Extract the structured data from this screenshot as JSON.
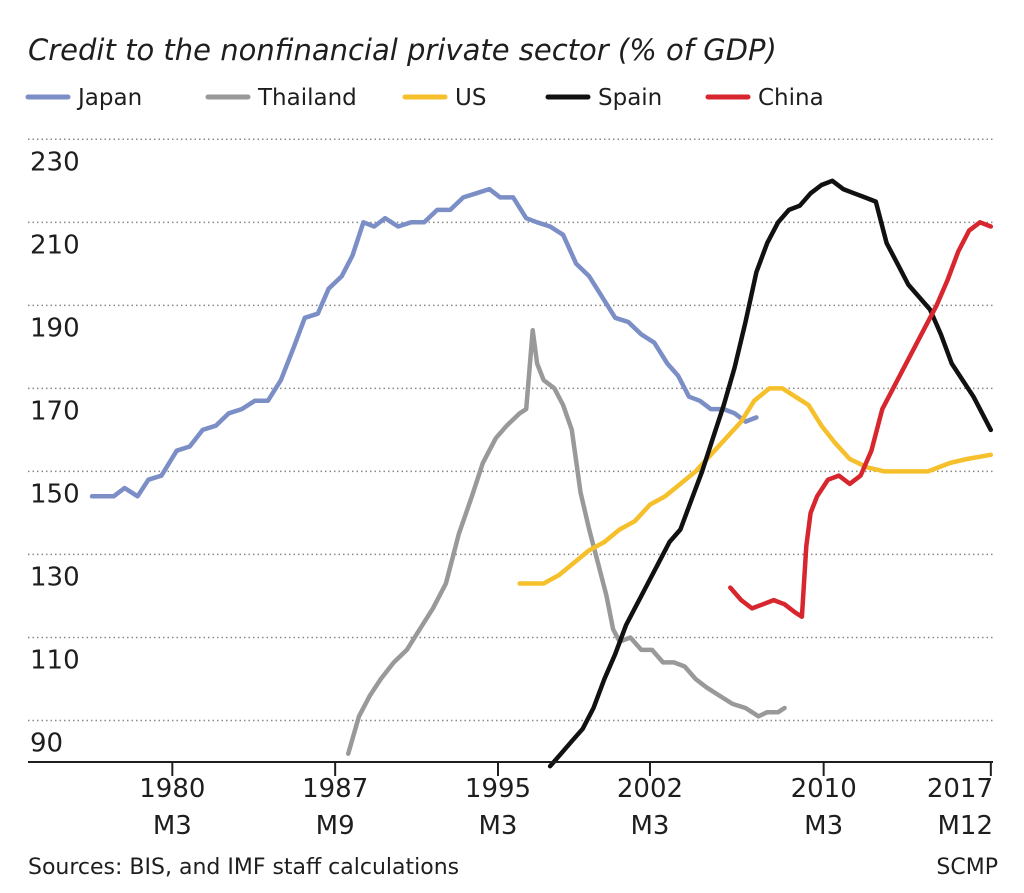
{
  "chart_data": {
    "type": "line",
    "title": "Credit to the nonfinancial private sector (%  of GDP)",
    "xlabel": "",
    "ylabel": "",
    "ylim": [
      80,
      232
    ],
    "xlim": [
      1976.5,
      2018
    ],
    "grid": "horizontal dotted",
    "legend_position": "top",
    "y_ticks": [
      230,
      210,
      190,
      170,
      150,
      130,
      110,
      90
    ],
    "x_ticks": [
      {
        "line1": "1980",
        "line2": "M3",
        "x": 1980.2
      },
      {
        "line1": "1987",
        "line2": "M9",
        "x": 1987.7
      },
      {
        "line1": "1995",
        "line2": "M3",
        "x": 1995.2
      },
      {
        "line1": "2002",
        "line2": "M3",
        "x": 2002.2
      },
      {
        "line1": "2010",
        "line2": "M3",
        "x": 2010.2
      },
      {
        "line1": "2017",
        "line2": "M12",
        "x": 2017.9
      }
    ],
    "series": [
      {
        "name": "Japan",
        "color": "#7b8fc6",
        "points": [
          [
            1976.5,
            144
          ],
          [
            1977.5,
            144
          ],
          [
            1978,
            146
          ],
          [
            1978.6,
            144
          ],
          [
            1979.1,
            148
          ],
          [
            1979.7,
            149
          ],
          [
            1980.4,
            155
          ],
          [
            1981,
            156
          ],
          [
            1981.6,
            160
          ],
          [
            1982.2,
            161
          ],
          [
            1982.8,
            164
          ],
          [
            1983.4,
            165
          ],
          [
            1984,
            167
          ],
          [
            1984.6,
            167
          ],
          [
            1985.2,
            172
          ],
          [
            1985.8,
            180
          ],
          [
            1986.3,
            187
          ],
          [
            1986.9,
            188
          ],
          [
            1987.4,
            194
          ],
          [
            1988,
            197
          ],
          [
            1988.5,
            202
          ],
          [
            1989,
            210
          ],
          [
            1989.5,
            209
          ],
          [
            1990,
            211
          ],
          [
            1990.6,
            209
          ],
          [
            1991.2,
            210
          ],
          [
            1991.8,
            210
          ],
          [
            1992.4,
            213
          ],
          [
            1993,
            213
          ],
          [
            1993.6,
            216
          ],
          [
            1994.2,
            217
          ],
          [
            1994.8,
            218
          ],
          [
            1995.3,
            216
          ],
          [
            1995.9,
            216
          ],
          [
            1996.5,
            211
          ],
          [
            1997,
            210
          ],
          [
            1997.6,
            209
          ],
          [
            1998.2,
            207
          ],
          [
            1998.8,
            200
          ],
          [
            1999.4,
            197
          ],
          [
            2000,
            192
          ],
          [
            2000.6,
            187
          ],
          [
            2001.2,
            186
          ],
          [
            2001.8,
            183
          ],
          [
            2002.4,
            181
          ],
          [
            2003,
            176
          ],
          [
            2003.5,
            173
          ],
          [
            2004,
            168
          ],
          [
            2004.5,
            167
          ],
          [
            2005,
            165
          ],
          [
            2005.6,
            165
          ],
          [
            2006.1,
            164
          ],
          [
            2006.6,
            162
          ],
          [
            2007.1,
            163
          ]
        ]
      },
      {
        "name": "Thailand",
        "color": "#999999",
        "points": [
          [
            1988.3,
            82
          ],
          [
            1988.8,
            91
          ],
          [
            1989.3,
            96
          ],
          [
            1989.8,
            100
          ],
          [
            1990.4,
            104
          ],
          [
            1991,
            107
          ],
          [
            1991.6,
            112
          ],
          [
            1992.2,
            117
          ],
          [
            1992.8,
            123
          ],
          [
            1993.4,
            135
          ],
          [
            1994,
            144
          ],
          [
            1994.5,
            152
          ],
          [
            1995.1,
            158
          ],
          [
            1995.6,
            161
          ],
          [
            1996.2,
            164
          ],
          [
            1996.5,
            165
          ],
          [
            1996.8,
            184
          ],
          [
            1997,
            176
          ],
          [
            1997.3,
            172
          ],
          [
            1997.8,
            170
          ],
          [
            1998.2,
            166
          ],
          [
            1998.6,
            160
          ],
          [
            1999,
            145
          ],
          [
            1999.4,
            136
          ],
          [
            1999.8,
            128
          ],
          [
            2000.2,
            120
          ],
          [
            2000.5,
            112
          ],
          [
            2000.8,
            109
          ],
          [
            2001.3,
            110
          ],
          [
            2001.8,
            107
          ],
          [
            2002.3,
            107
          ],
          [
            2002.8,
            104
          ],
          [
            2003.3,
            104
          ],
          [
            2003.8,
            103
          ],
          [
            2004.3,
            100
          ],
          [
            2004.8,
            98
          ],
          [
            2005.4,
            96
          ],
          [
            2006,
            94
          ],
          [
            2006.6,
            93
          ],
          [
            2007.2,
            91
          ],
          [
            2007.6,
            92
          ],
          [
            2008.1,
            92
          ],
          [
            2008.4,
            93
          ]
        ]
      },
      {
        "name": "US",
        "color": "#f5c02b",
        "points": [
          [
            1996.2,
            123
          ],
          [
            1997.3,
            123
          ],
          [
            1998,
            125
          ],
          [
            1998.7,
            128
          ],
          [
            1999.4,
            131
          ],
          [
            2000.1,
            133
          ],
          [
            2000.8,
            136
          ],
          [
            2001.5,
            138
          ],
          [
            2002.2,
            142
          ],
          [
            2002.9,
            144
          ],
          [
            2003.6,
            147
          ],
          [
            2004.3,
            150
          ],
          [
            2005,
            154
          ],
          [
            2005.7,
            158
          ],
          [
            2006.4,
            162
          ],
          [
            2007,
            167
          ],
          [
            2007.7,
            170
          ],
          [
            2008.3,
            170
          ],
          [
            2008.9,
            168
          ],
          [
            2009.5,
            166
          ],
          [
            2010.1,
            161
          ],
          [
            2010.7,
            157
          ],
          [
            2011.4,
            153
          ],
          [
            2012.2,
            151
          ],
          [
            2013,
            150
          ],
          [
            2014,
            150
          ],
          [
            2015,
            150
          ],
          [
            2016,
            152
          ],
          [
            2016.8,
            153
          ],
          [
            2017.9,
            154
          ]
        ]
      },
      {
        "name": "Spain",
        "color": "#111111",
        "points": [
          [
            1997.6,
            79
          ],
          [
            1998.1,
            82
          ],
          [
            1998.6,
            85
          ],
          [
            1999.1,
            88
          ],
          [
            1999.6,
            93
          ],
          [
            2000.1,
            100
          ],
          [
            2000.6,
            106
          ],
          [
            2001.1,
            113
          ],
          [
            2001.6,
            118
          ],
          [
            2002.1,
            123
          ],
          [
            2002.6,
            128
          ],
          [
            2003.1,
            133
          ],
          [
            2003.6,
            136
          ],
          [
            2004.1,
            143
          ],
          [
            2004.6,
            150
          ],
          [
            2005.1,
            158
          ],
          [
            2005.6,
            166
          ],
          [
            2006.1,
            175
          ],
          [
            2006.6,
            186
          ],
          [
            2007.1,
            198
          ],
          [
            2007.6,
            205
          ],
          [
            2008.1,
            210
          ],
          [
            2008.6,
            213
          ],
          [
            2009.1,
            214
          ],
          [
            2009.6,
            217
          ],
          [
            2010.1,
            219
          ],
          [
            2010.6,
            220
          ],
          [
            2011.1,
            218
          ],
          [
            2011.6,
            217
          ],
          [
            2012.1,
            216
          ],
          [
            2012.6,
            215
          ],
          [
            2013.1,
            205
          ],
          [
            2013.6,
            200
          ],
          [
            2014.1,
            195
          ],
          [
            2014.6,
            192
          ],
          [
            2015.1,
            189
          ],
          [
            2015.6,
            183
          ],
          [
            2016.1,
            176
          ],
          [
            2016.6,
            172
          ],
          [
            2017.1,
            168
          ],
          [
            2017.6,
            163
          ],
          [
            2017.9,
            160
          ]
        ]
      },
      {
        "name": "China",
        "color": "#d7262d",
        "points": [
          [
            2005.9,
            122
          ],
          [
            2006.4,
            119
          ],
          [
            2006.9,
            117
          ],
          [
            2007.4,
            118
          ],
          [
            2007.9,
            119
          ],
          [
            2008.4,
            118
          ],
          [
            2008.9,
            116
          ],
          [
            2009.2,
            115
          ],
          [
            2009.4,
            132
          ],
          [
            2009.6,
            140
          ],
          [
            2009.9,
            144
          ],
          [
            2010.4,
            148
          ],
          [
            2010.9,
            149
          ],
          [
            2011.4,
            147
          ],
          [
            2011.9,
            149
          ],
          [
            2012.4,
            155
          ],
          [
            2012.9,
            165
          ],
          [
            2013.4,
            170
          ],
          [
            2013.9,
            175
          ],
          [
            2014.4,
            180
          ],
          [
            2014.9,
            185
          ],
          [
            2015.4,
            190
          ],
          [
            2015.9,
            196
          ],
          [
            2016.4,
            203
          ],
          [
            2016.9,
            208
          ],
          [
            2017.4,
            210
          ],
          [
            2017.9,
            209
          ]
        ]
      }
    ]
  },
  "footer": {
    "source": "Sources: BIS, and IMF staff calculations",
    "credit": "SCMP"
  },
  "colors": {
    "grid": "#888888",
    "axis": "#1e1e1e"
  }
}
